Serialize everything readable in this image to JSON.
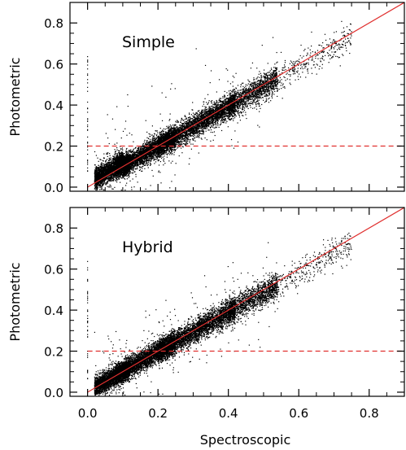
{
  "chart_data": [
    {
      "type": "scatter",
      "panel_label": "Simple",
      "xlabel": "",
      "ylabel": "Photometric",
      "xlim": [
        -0.05,
        0.9
      ],
      "ylim": [
        -0.02,
        0.9
      ],
      "x_ticks": [
        0.0,
        0.2,
        0.4,
        0.6,
        0.8
      ],
      "x_tick_labels_shown": false,
      "y_ticks": [
        0.0,
        0.2,
        0.4,
        0.6,
        0.8
      ],
      "y_tick_labels": [
        "0.0",
        "0.2",
        "0.4",
        "0.6",
        "0.8"
      ],
      "grid": false,
      "reference_lines": [
        {
          "kind": "solid",
          "color": "#e0302f",
          "description": "one-to-one line",
          "x": [
            0.0,
            0.9
          ],
          "y": [
            0.0,
            0.9
          ]
        },
        {
          "kind": "dashed",
          "color": "#e0302f",
          "description": "horizontal threshold",
          "y_value": 0.2
        }
      ],
      "point_color": "#000000",
      "approx_point_count": 12000,
      "trend_samples": {
        "x": [
          0.05,
          0.1,
          0.15,
          0.2,
          0.25,
          0.3,
          0.35,
          0.4,
          0.45,
          0.5,
          0.55,
          0.6
        ],
        "y": [
          0.05,
          0.1,
          0.15,
          0.2,
          0.25,
          0.29,
          0.34,
          0.38,
          0.44,
          0.49,
          0.54,
          0.58
        ]
      }
    },
    {
      "type": "scatter",
      "panel_label": "Hybrid",
      "xlabel": "Spectroscopic",
      "ylabel": "Photometric",
      "xlim": [
        -0.05,
        0.9
      ],
      "ylim": [
        -0.02,
        0.9
      ],
      "x_ticks": [
        0.0,
        0.2,
        0.4,
        0.6,
        0.8
      ],
      "x_tick_labels": [
        "0.0",
        "0.2",
        "0.4",
        "0.6",
        "0.8"
      ],
      "y_ticks": [
        0.0,
        0.2,
        0.4,
        0.6,
        0.8
      ],
      "y_tick_labels": [
        "0.0",
        "0.2",
        "0.4",
        "0.6",
        "0.8"
      ],
      "grid": false,
      "reference_lines": [
        {
          "kind": "solid",
          "color": "#e0302f",
          "description": "one-to-one line",
          "x": [
            0.0,
            0.9
          ],
          "y": [
            0.0,
            0.9
          ]
        },
        {
          "kind": "dashed",
          "color": "#e0302f",
          "description": "horizontal threshold",
          "y_value": 0.2
        }
      ],
      "point_color": "#000000",
      "approx_point_count": 12000,
      "trend_samples": {
        "x": [
          0.05,
          0.1,
          0.15,
          0.2,
          0.25,
          0.3,
          0.35,
          0.4,
          0.45,
          0.5,
          0.55,
          0.6
        ],
        "y": [
          0.04,
          0.09,
          0.15,
          0.2,
          0.26,
          0.31,
          0.35,
          0.39,
          0.44,
          0.48,
          0.53,
          0.57
        ]
      }
    }
  ]
}
